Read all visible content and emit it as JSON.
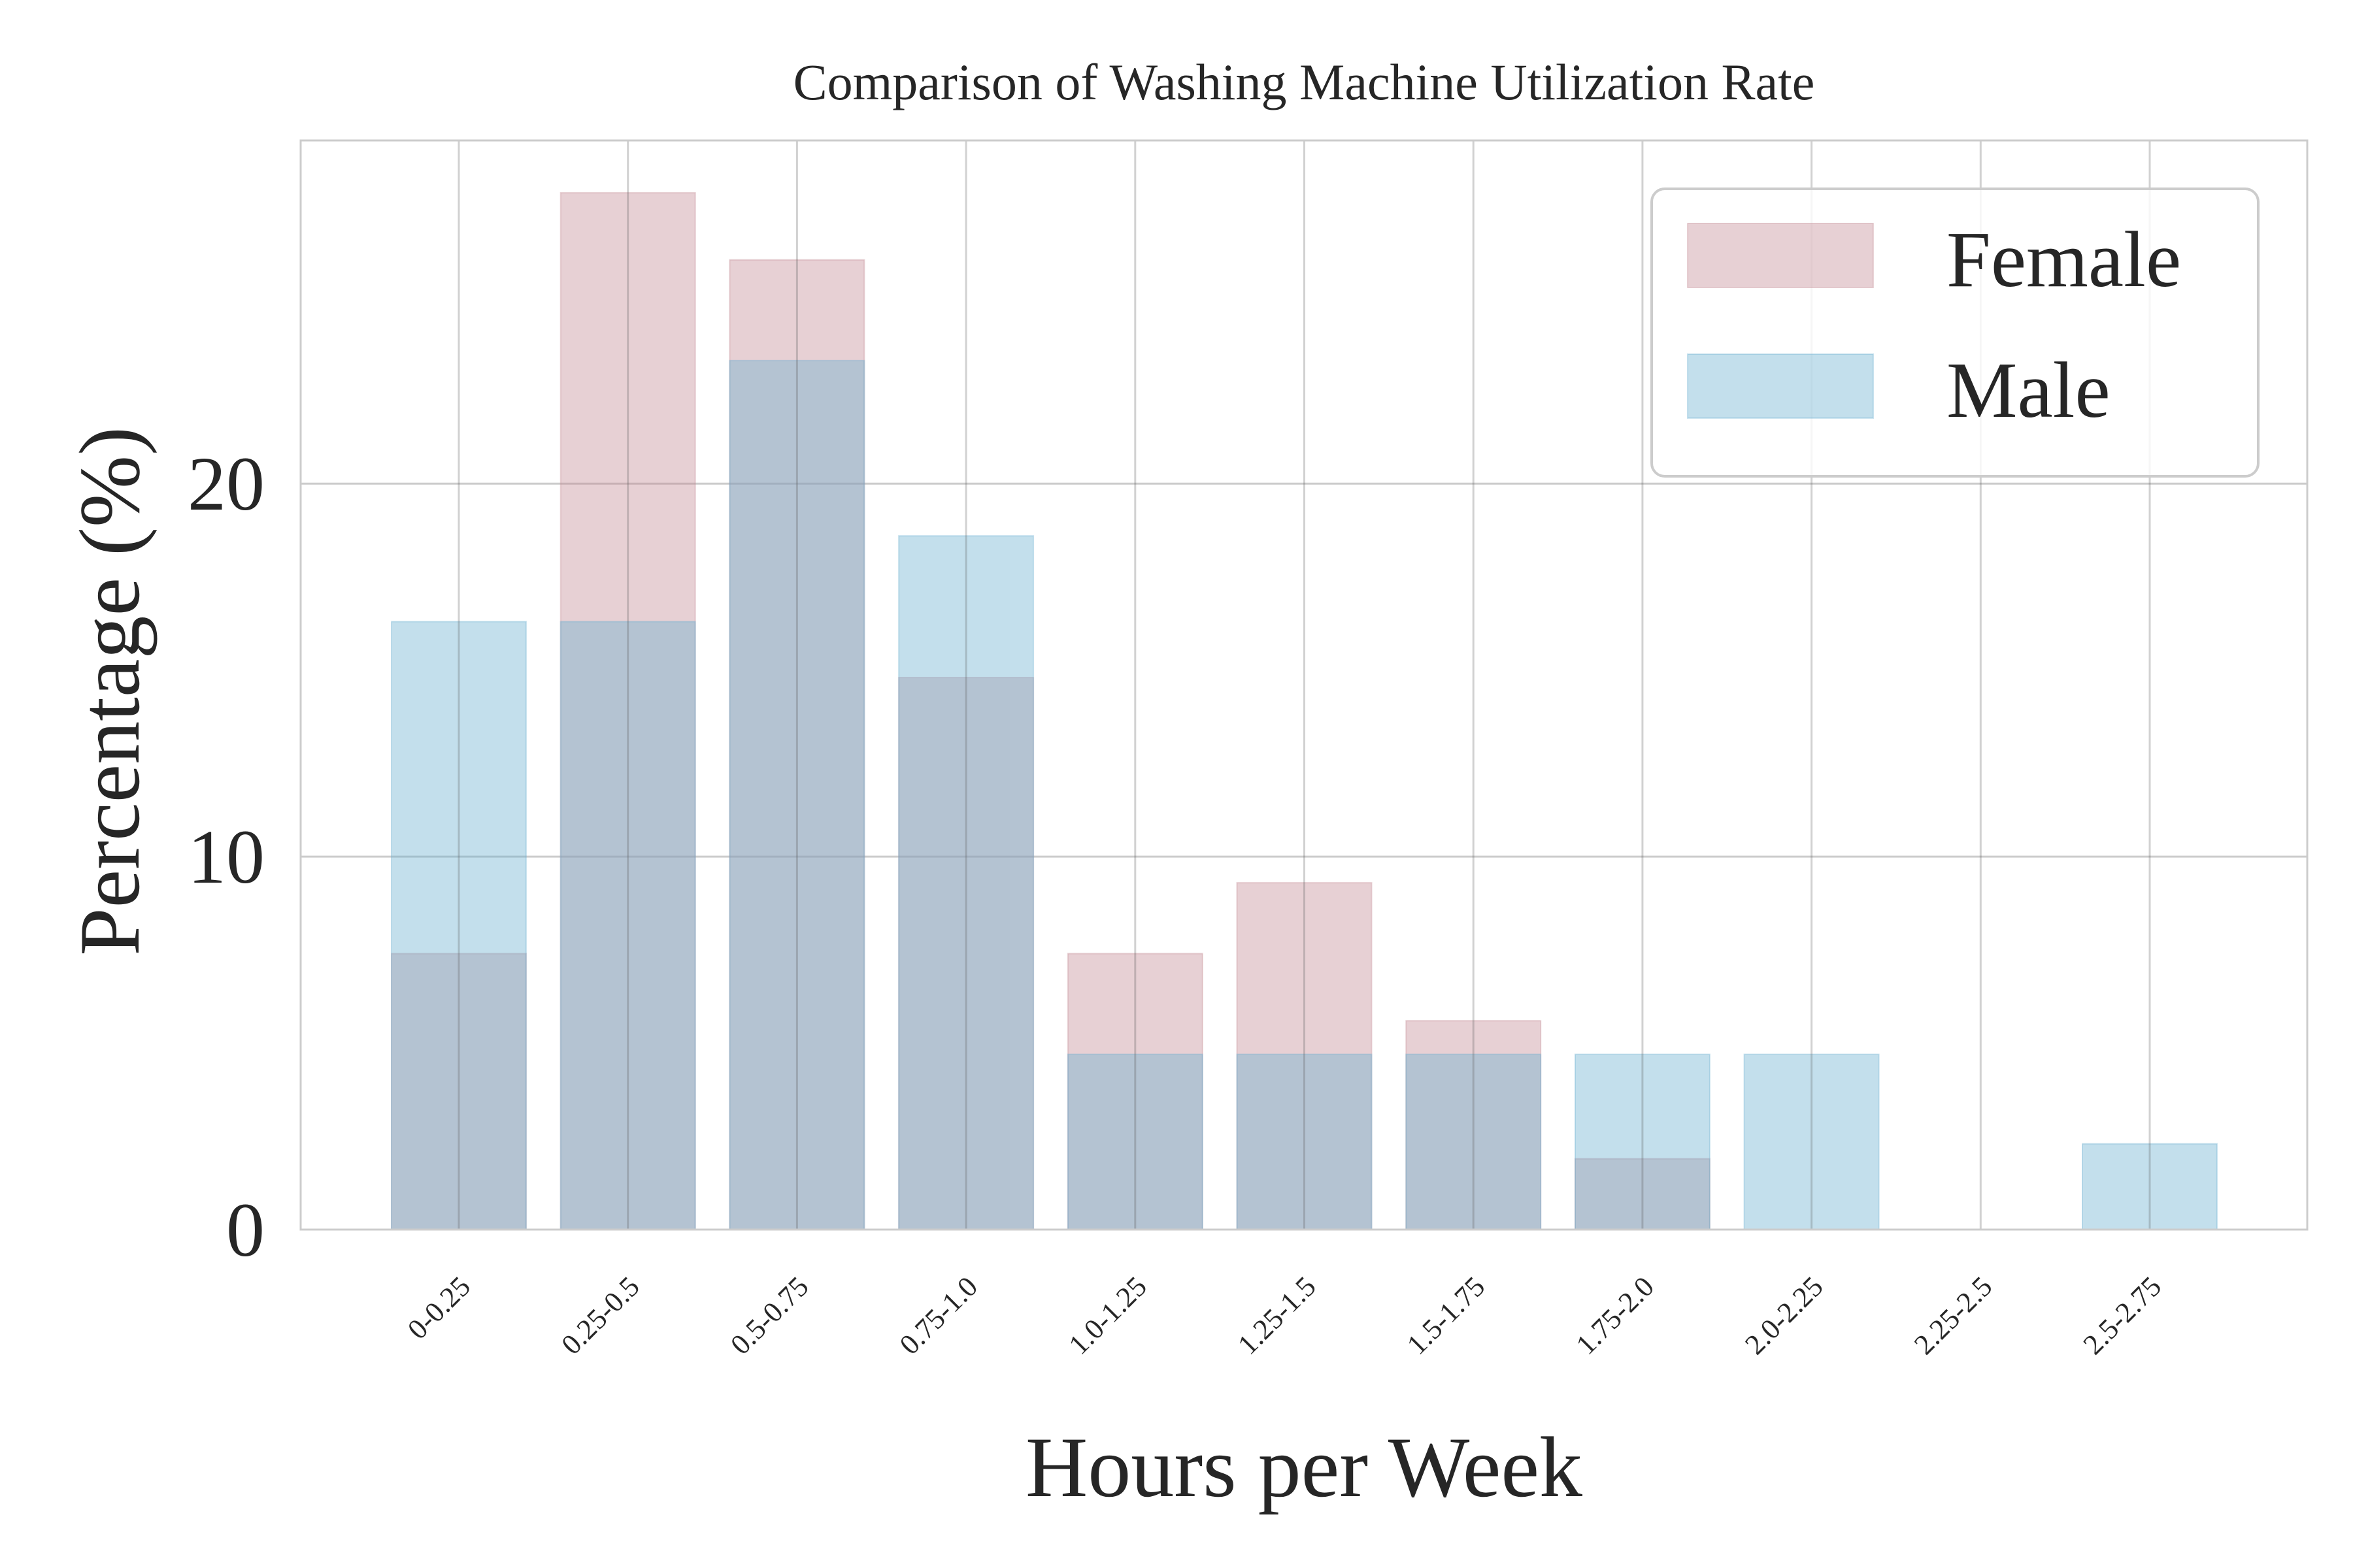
{
  "chart_data": {
    "type": "bar",
    "title": "Comparison of Washing Machine Utilization Rate",
    "xlabel": "Hours per Week",
    "ylabel": "Percentage (%)",
    "categories": [
      "0-0.25",
      "0.25-0.5",
      "0.5-0.75",
      "0.75-1.0",
      "1.0-1.25",
      "1.25-1.5",
      "1.5-1.75",
      "1.75-2.0",
      "2.0-2.25",
      "2.25-2.5",
      "2.5-2.75"
    ],
    "series": [
      {
        "name": "Female",
        "color": "#c48a93",
        "opacity": 0.4,
        "values": [
          7.4,
          27.8,
          26.0,
          14.8,
          7.4,
          9.3,
          5.6,
          1.9,
          0.0,
          0.0,
          0.0
        ]
      },
      {
        "name": "Male",
        "color": "#6aaed0",
        "opacity": 0.4,
        "values": [
          16.3,
          16.3,
          23.3,
          18.6,
          4.7,
          4.7,
          4.7,
          4.7,
          4.7,
          0.0,
          2.3
        ]
      }
    ],
    "yticks": [
      "0",
      "10",
      "20"
    ],
    "ylim": [
      0,
      29.2
    ],
    "grid": true,
    "legend_position": "top-right",
    "overlap": true
  }
}
